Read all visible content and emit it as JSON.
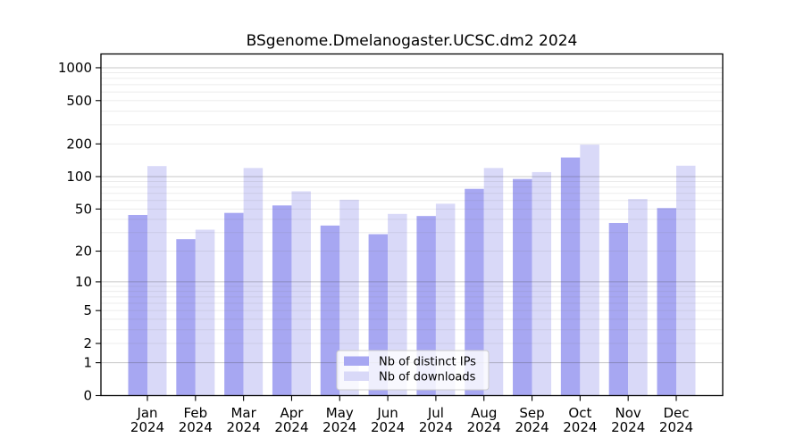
{
  "chart_data": {
    "type": "bar",
    "title": "BSgenome.Dmelanogaster.UCSC.dm2 2024",
    "categories": [
      "Jan",
      "Feb",
      "Mar",
      "Apr",
      "May",
      "Jun",
      "Jul",
      "Aug",
      "Sep",
      "Oct",
      "Nov",
      "Dec"
    ],
    "x_tick_second_line": "2024",
    "series": [
      {
        "name": "Nb of distinct IPs",
        "color": "#a7a7f2",
        "values": [
          44,
          26,
          46,
          54,
          35,
          29,
          43,
          77,
          95,
          150,
          37,
          51
        ]
      },
      {
        "name": "Nb of downloads",
        "color": "#d9d9f8",
        "values": [
          125,
          32,
          120,
          73,
          61,
          45,
          56,
          120,
          110,
          197,
          62,
          126
        ]
      }
    ],
    "y_axis": {
      "scale": "log1p",
      "ticks": [
        0,
        1,
        2,
        5,
        10,
        20,
        50,
        100,
        200,
        500,
        1000
      ],
      "range": [
        0,
        1260
      ]
    },
    "grid": {
      "major": [
        1,
        10,
        100,
        1000
      ],
      "minor_decades": [
        1,
        10,
        100
      ],
      "minor_multiples": [
        2,
        3,
        4,
        5,
        6,
        7,
        8,
        9
      ]
    },
    "legend": {
      "position": "bottom-center-inside",
      "entries": [
        "Nb of distinct IPs",
        "Nb of downloads"
      ]
    }
  }
}
